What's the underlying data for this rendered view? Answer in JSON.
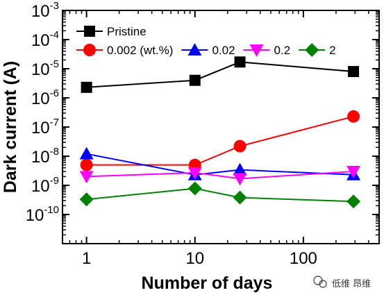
{
  "chart_data": {
    "type": "line",
    "xlabel": "Number of days",
    "ylabel": "Dark current (A)",
    "xscale": "log",
    "yscale": "log",
    "xlim": [
      0.6,
      500
    ],
    "ylim": [
      1e-11,
      0.001
    ],
    "x_ticks": [
      {
        "value": 1,
        "label": "1"
      },
      {
        "value": 10,
        "label": "10"
      },
      {
        "value": 100,
        "label": "100"
      }
    ],
    "y_ticks": [
      {
        "value": 1e-10,
        "base": "10",
        "exp": "-10"
      },
      {
        "value": 1e-09,
        "base": "10",
        "exp": "-9"
      },
      {
        "value": 1e-08,
        "base": "10",
        "exp": "-8"
      },
      {
        "value": 1e-07,
        "base": "10",
        "exp": "-7"
      },
      {
        "value": 1e-06,
        "base": "10",
        "exp": "-6"
      },
      {
        "value": 1e-05,
        "base": "10",
        "exp": "-5"
      },
      {
        "value": 0.0001,
        "base": "10",
        "exp": "-4"
      },
      {
        "value": 0.001,
        "base": "10",
        "exp": "-3"
      }
    ],
    "grid": false,
    "legend_position": "top-left",
    "series": [
      {
        "name": "Pristine",
        "color": "#000000",
        "marker": "square",
        "x": [
          1,
          10,
          26,
          290
        ],
        "y": [
          2.3e-06,
          4e-06,
          1.7e-05,
          8e-06
        ]
      },
      {
        "name": "0.002 (wt.%)",
        "color": "#ff0000",
        "marker": "circle",
        "x": [
          1,
          10,
          26,
          290
        ],
        "y": [
          5e-09,
          5e-09,
          2.2e-08,
          2.3e-07
        ]
      },
      {
        "name": "0.02",
        "color": "#0000ff",
        "marker": "triangle-up",
        "x": [
          1,
          10,
          26,
          290
        ],
        "y": [
          1.2e-08,
          2.3e-09,
          3.4e-09,
          2.3e-09
        ]
      },
      {
        "name": "0.2",
        "color": "#ff00ff",
        "marker": "triangle-down",
        "x": [
          1,
          10,
          26,
          290
        ],
        "y": [
          2e-09,
          2.7e-09,
          1.7e-09,
          3e-09
        ]
      },
      {
        "name": "2",
        "color": "#008000",
        "marker": "diamond",
        "x": [
          1,
          10,
          26,
          290
        ],
        "y": [
          3.3e-10,
          7.8e-10,
          3.8e-10,
          2.8e-10
        ]
      }
    ]
  },
  "watermark": {
    "text": "低维 昂维",
    "icon": "wechat-icon"
  }
}
